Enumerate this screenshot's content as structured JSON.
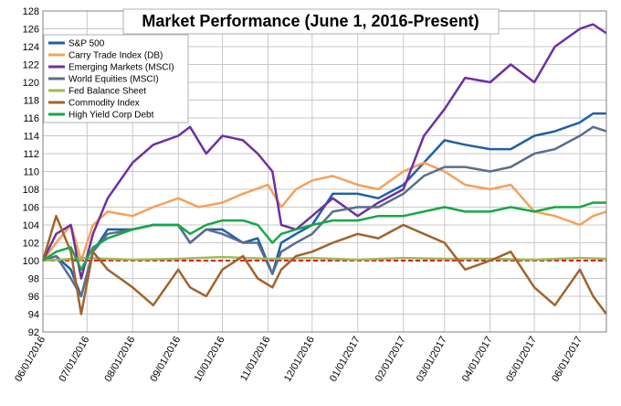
{
  "chart_data": {
    "type": "line",
    "title": "Market Performance (June 1, 2016-Present)",
    "xlabel": "",
    "ylabel": "",
    "ylim": [
      92,
      128
    ],
    "yticks": [
      92,
      94,
      96,
      98,
      100,
      102,
      104,
      106,
      108,
      110,
      112,
      114,
      116,
      118,
      120,
      122,
      124,
      126,
      128
    ],
    "xlim": [
      "06/01/2016",
      "06/19/2017"
    ],
    "xticks": [
      "06/01/2016",
      "07/01/2016",
      "08/01/2016",
      "09/01/2016",
      "10/01/2016",
      "11/01/2016",
      "12/01/2016",
      "01/01/2017",
      "02/01/2017",
      "03/01/2017",
      "04/01/2017",
      "05/01/2017",
      "06/01/2017"
    ],
    "grid": true,
    "legend_position": "top-left",
    "reference_line": {
      "value": 100,
      "color": "#e02020",
      "style": "dashed"
    },
    "series": [
      {
        "name": "S&P 500",
        "color": "#1f5fa8",
        "x": [
          "06/01/2016",
          "06/10/2016",
          "06/20/2016",
          "06/27/2016",
          "07/05/2016",
          "07/15/2016",
          "08/01/2016",
          "08/15/2016",
          "09/01/2016",
          "09/09/2016",
          "09/20/2016",
          "10/01/2016",
          "10/15/2016",
          "10/25/2016",
          "11/04/2016",
          "11/10/2016",
          "11/20/2016",
          "12/01/2016",
          "12/15/2016",
          "01/01/2017",
          "01/15/2017",
          "02/01/2017",
          "02/15/2017",
          "03/01/2017",
          "03/15/2017",
          "04/01/2017",
          "04/15/2017",
          "05/01/2017",
          "05/15/2017",
          "06/01/2017",
          "06/10/2017",
          "06/19/2017"
        ],
        "y": [
          100,
          100.5,
          99,
          96,
          101,
          103.5,
          103.5,
          104,
          104,
          102,
          103.5,
          103.5,
          102,
          102.5,
          98.5,
          102,
          103,
          104,
          107.5,
          107.5,
          107,
          108.5,
          111,
          113.5,
          113,
          112.5,
          112.5,
          114,
          114.5,
          115.5,
          116.5,
          116.5
        ]
      },
      {
        "name": "Carry Trade Index (DB)",
        "color": "#f5a05a",
        "x": [
          "06/01/2016",
          "06/10/2016",
          "06/20/2016",
          "06/27/2016",
          "07/05/2016",
          "07/15/2016",
          "08/01/2016",
          "08/15/2016",
          "09/01/2016",
          "09/15/2016",
          "10/01/2016",
          "10/15/2016",
          "11/01/2016",
          "11/10/2016",
          "11/20/2016",
          "12/01/2016",
          "12/15/2016",
          "01/01/2017",
          "01/15/2017",
          "02/01/2017",
          "02/15/2017",
          "03/01/2017",
          "03/15/2017",
          "04/01/2017",
          "04/15/2017",
          "05/01/2017",
          "05/15/2017",
          "06/01/2017",
          "06/10/2017",
          "06/19/2017"
        ],
        "y": [
          100,
          102,
          104,
          100,
          104,
          105.5,
          105,
          106,
          107,
          106,
          106.5,
          107.5,
          108.5,
          106,
          108,
          109,
          109.5,
          108.5,
          108,
          110,
          111,
          110,
          108.5,
          108,
          108.5,
          105.5,
          105,
          104,
          105,
          105.5
        ]
      },
      {
        "name": "Emerging Markets (MSCI)",
        "color": "#7030a0",
        "x": [
          "06/01/2016",
          "06/10/2016",
          "06/20/2016",
          "06/27/2016",
          "07/05/2016",
          "07/15/2016",
          "08/01/2016",
          "08/15/2016",
          "09/01/2016",
          "09/09/2016",
          "09/20/2016",
          "10/01/2016",
          "10/15/2016",
          "10/25/2016",
          "11/04/2016",
          "11/10/2016",
          "11/20/2016",
          "12/01/2016",
          "12/15/2016",
          "01/01/2017",
          "01/15/2017",
          "02/01/2017",
          "02/15/2017",
          "03/01/2017",
          "03/15/2017",
          "04/01/2017",
          "04/15/2017",
          "05/01/2017",
          "05/15/2017",
          "06/01/2017",
          "06/10/2017",
          "06/19/2017"
        ],
        "y": [
          100,
          103,
          104,
          98,
          103,
          107,
          111,
          113,
          114,
          115,
          112,
          114,
          113.5,
          112,
          110,
          104,
          103.5,
          105,
          107,
          105,
          106.5,
          108,
          114,
          117,
          120.5,
          120,
          122,
          120,
          124,
          126,
          126.5,
          125.5
        ]
      },
      {
        "name": "World Equities (MSCI)",
        "color": "#5b6e8c",
        "x": [
          "06/01/2016",
          "06/10/2016",
          "06/20/2016",
          "06/27/2016",
          "07/05/2016",
          "07/15/2016",
          "08/01/2016",
          "08/15/2016",
          "09/01/2016",
          "09/09/2016",
          "09/20/2016",
          "10/01/2016",
          "10/15/2016",
          "10/25/2016",
          "11/04/2016",
          "11/10/2016",
          "11/20/2016",
          "12/01/2016",
          "12/15/2016",
          "01/01/2017",
          "01/15/2017",
          "02/01/2017",
          "02/15/2017",
          "03/01/2017",
          "03/15/2017",
          "04/01/2017",
          "04/15/2017",
          "05/01/2017",
          "05/15/2017",
          "06/01/2017",
          "06/10/2017",
          "06/19/2017"
        ],
        "y": [
          100,
          100.5,
          98,
          96,
          101,
          103,
          103.5,
          104,
          104,
          102,
          103.5,
          103,
          102,
          102,
          98.5,
          101,
          102,
          103,
          105.5,
          106,
          106,
          107.5,
          109.5,
          110.5,
          110.5,
          110,
          110.5,
          112,
          112.5,
          114,
          115,
          114.5
        ]
      },
      {
        "name": "Fed Balance Sheet",
        "color": "#9bbb59",
        "x": [
          "06/01/2016",
          "07/01/2016",
          "08/01/2016",
          "09/01/2016",
          "10/01/2016",
          "11/01/2016",
          "12/01/2016",
          "01/01/2017",
          "02/01/2017",
          "03/01/2017",
          "04/01/2017",
          "05/01/2017",
          "06/01/2017",
          "06/19/2017"
        ],
        "y": [
          100,
          100.3,
          100.1,
          100.2,
          100.4,
          100.2,
          100.3,
          100.1,
          100.3,
          100.2,
          100.2,
          100.1,
          100.3,
          100.2
        ]
      },
      {
        "name": "Commodity Index",
        "color": "#a0642d",
        "x": [
          "06/01/2016",
          "06/10/2016",
          "06/20/2016",
          "06/27/2016",
          "07/05/2016",
          "07/15/2016",
          "08/01/2016",
          "08/15/2016",
          "09/01/2016",
          "09/09/2016",
          "09/20/2016",
          "10/01/2016",
          "10/15/2016",
          "10/25/2016",
          "11/04/2016",
          "11/10/2016",
          "11/20/2016",
          "12/01/2016",
          "12/15/2016",
          "01/01/2017",
          "01/15/2017",
          "02/01/2017",
          "02/15/2017",
          "03/01/2017",
          "03/15/2017",
          "04/01/2017",
          "04/15/2017",
          "05/01/2017",
          "05/15/2017",
          "06/01/2017",
          "06/10/2017",
          "06/19/2017"
        ],
        "y": [
          100,
          105,
          101,
          94,
          101,
          99,
          97,
          95,
          99,
          97,
          96,
          99,
          100.5,
          98,
          97,
          99,
          100.5,
          101,
          102,
          103,
          102.5,
          104,
          103,
          102,
          99,
          100,
          101,
          97,
          95,
          99,
          96,
          94
        ]
      },
      {
        "name": "High Yield Corp Debt",
        "color": "#17a844",
        "x": [
          "06/01/2016",
          "06/10/2016",
          "06/20/2016",
          "06/27/2016",
          "07/05/2016",
          "07/15/2016",
          "08/01/2016",
          "08/15/2016",
          "09/01/2016",
          "09/09/2016",
          "09/20/2016",
          "10/01/2016",
          "10/15/2016",
          "10/25/2016",
          "11/04/2016",
          "11/10/2016",
          "11/20/2016",
          "12/01/2016",
          "12/15/2016",
          "01/01/2017",
          "01/15/2017",
          "02/01/2017",
          "02/15/2017",
          "03/01/2017",
          "03/15/2017",
          "04/01/2017",
          "04/15/2017",
          "05/01/2017",
          "05/15/2017",
          "06/01/2017",
          "06/10/2017",
          "06/19/2017"
        ],
        "y": [
          100,
          101,
          101.5,
          99,
          101.5,
          102.5,
          103.5,
          104,
          104,
          103,
          104,
          104.5,
          104.5,
          104,
          102,
          103,
          103.5,
          104,
          104.5,
          104.5,
          105,
          105,
          105.5,
          106,
          105.5,
          105.5,
          106,
          105.5,
          106,
          106,
          106.5,
          106.5
        ]
      }
    ]
  }
}
